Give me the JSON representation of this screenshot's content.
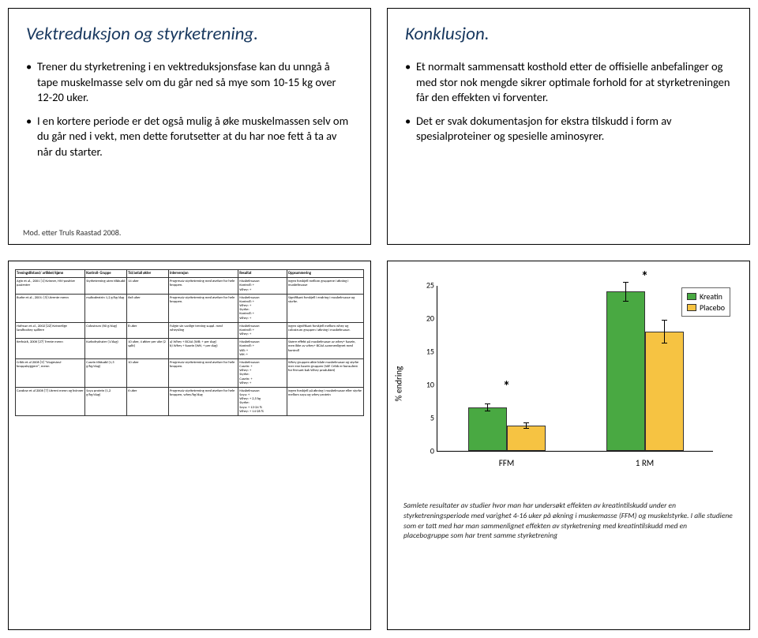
{
  "slide1": {
    "title": "Vektreduksjon og styrketrening.",
    "bullets": [
      "Trener du styrketrening i en vektreduksjonsfase kan du unngå å tape muskelmasse selv om du går ned så mye som 10-15 kg over 12-20 uker.",
      "I en kortere periode er det også mulig å øke muskelmassen selv om du går ned i vekt, men dette forutsetter at du har noe fett å ta av når du starter."
    ],
    "citation": "Mod. etter Truls Raastad\n2008."
  },
  "slide2": {
    "title": "Konklusjon.",
    "bullets": [
      "Et normalt sammensatt kosthold  etter de offisielle anbefalinger  og med stor nok mengde sikrer optimale forhold for at styrketreningen får den effekten vi forventer.",
      "Det er svak dokumentasjon for ekstra tilskudd i form av spesialproteiner og spesielle aminosyrer."
    ]
  },
  "slide3": {
    "columns": [
      "Treningstilstand/\nartikkel/kjønn",
      "Kontroll-\nGruppe",
      "Tid/antall økter",
      "Intervensjon",
      "Resultat",
      "Oppsummering"
    ],
    "col_widths": [
      "20%",
      "12%",
      "12%",
      "20%",
      "14%",
      "22%"
    ],
    "rows": [
      [
        "Agin et al., 2001 [1] Kvinner, HIV-positive pasienter",
        "Styrketrening uten tilskudd",
        "14 uker",
        "Progressiv styrketrening med øvelser for hele kroppen.",
        "Muskelmasse:\nKontroll: +\nWhey: +",
        "Ingen forskjell mellom gruppene i økning i muskelmasse"
      ],
      [
        "Burke et al., 2001: [5] Utrente menn",
        "maltodextrin 1,2 g/kg/dag",
        "6x6 uker",
        "Progressiv styrketrening med øvelser for hele kroppen.",
        "Muskelmasse:\nKontroll: +\nWhey: +\nStyrke:\nKontroll: +\nWhey: +",
        "Signifikant forskjell i endring i muskelmasse og styrke."
      ],
      [
        "Hofman et al., 2002 [22] Kvinnelige landhockey spillere",
        "Colostrum (60 g/dag)",
        "8 uker",
        "Fulgte sin vanlige trening suppl. med wheysling",
        "Muskelmasse:\nKontroll: +\nWhey: +",
        "Ingen signifikant forskjell mellom whey og colostrum gruppen i økning i muskelmasse."
      ],
      [
        "Kerksick, 2006 [27] Trente menn",
        "Karbohydrater (1/dag)",
        "10 uker, 4 økter per uke (2 split)",
        "a) Whey + BCAA (WB; + per dag)\nb) Whey + kasein (WK; + per dag)",
        "Muskelmasse:\nKontroll: +\nWB: +\nWK: +",
        "Større effekt på muskelmasse av whey+ kasein, men ikke av whey+ BCAA sammenlignet med kontroll"
      ],
      [
        "Cribb et al 2006 [9] \"Magesiosi-kroppsbyggere\", menn",
        "Casein tilskudd (1,5 g/kg/dag)",
        "10 uker",
        "Progressiv styrketrening med øvelser for hele kroppen.",
        "Muskelmasse:\nCasein: +\nWhey: +\nStyrke:\nCasein: +\nWhey: +",
        "Whey gruppen økte både muskelmasse og styrke mer enn kasein gruppen (NB! Cribb er konsulent for firmaet bak Whey produktet)"
      ],
      [
        "Candow et al 2006 [7] Utrent menn og kvinner",
        "Soya protein (1,2 g/kg/dag)",
        "6 uker",
        "Progressiv styrketrening med øvelser for hele kroppen, whey/kg/dag",
        "Muskelmasse:\nSoya: +\nWhey: + 2,5 kg\nStyrke:\nSoya: + 13-24 %\nWhey: + 14-26 %",
        "Ingen forskjell på økning i muskelmasse eller styrke mellom soya og whey protein"
      ]
    ]
  },
  "slide4": {
    "chart": {
      "type": "bar",
      "y_label": "% endring",
      "ylim": [
        0,
        25
      ],
      "ytick_step": 5,
      "categories": [
        "FFM",
        "1 RM"
      ],
      "series": [
        {
          "name": "Kreatin",
          "color": "#49a942",
          "values": [
            6.5,
            24.0
          ],
          "err": [
            0.6,
            1.5
          ]
        },
        {
          "name": "Placebo",
          "color": "#f6c342",
          "values": [
            3.8,
            18.0
          ],
          "err": [
            0.5,
            1.8
          ]
        }
      ],
      "stars": [
        {
          "category": "FFM",
          "y": 8.5
        },
        {
          "category": "1 RM",
          "y": 27
        }
      ],
      "bar_width": 0.28,
      "background_color": "#ffffff",
      "border_color": "#000000",
      "label_fontsize": 11,
      "tick_fontsize": 10
    },
    "caption": "Samlete resultater av studier hvor man har undersøkt effekten av kreatintilskudd under en styrketreningsperiode med varighet 4-16 uker på økning i muskemasse (FFM) og muskelstyrke. I alle studiene som er tatt med har man sammenlignet effekten av styrketrening med kreatintilskudd med en placebogruppe som har trent samme styrketrening"
  }
}
